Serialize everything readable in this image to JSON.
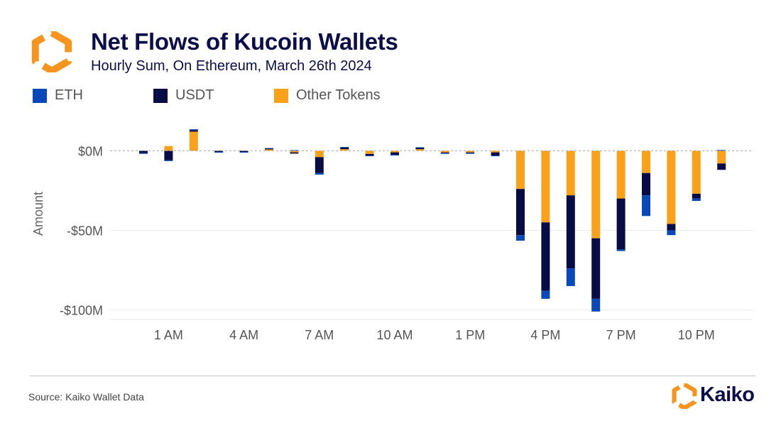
{
  "header": {
    "title": "Net Flows of Kucoin Wallets",
    "subtitle": "Hourly Sum, On Ethereum, March 26th 2024"
  },
  "legend": [
    {
      "label": "ETH",
      "color": "#0a47b8"
    },
    {
      "label": "USDT",
      "color": "#080c45"
    },
    {
      "label": "Other Tokens",
      "color": "#f9a11b"
    }
  ],
  "footer": {
    "source": "Source: Kaiko Wallet Data",
    "brand": "Kaiko",
    "logo_icon": "kaiko-hexagon-logo"
  },
  "chart_data": {
    "type": "bar",
    "stacked": true,
    "ylabel": "Amount",
    "xlabel": "",
    "ylim": [
      -106,
      18
    ],
    "yticks": [
      0,
      -50,
      -100
    ],
    "ytick_labels": [
      "$0M",
      "-$50M",
      "-$100M"
    ],
    "xtick_indices": [
      1,
      4,
      7,
      10,
      13,
      16,
      19,
      22
    ],
    "xtick_labels": [
      "1 AM",
      "4 AM",
      "7 AM",
      "10 AM",
      "1 PM",
      "4 PM",
      "7 PM",
      "10 PM"
    ],
    "grid": "horizontal",
    "legend_position": "top-left",
    "unit": "$M",
    "categories": [
      "12 AM",
      "1 AM",
      "2 AM",
      "3 AM",
      "4 AM",
      "5 AM",
      "6 AM",
      "7 AM",
      "8 AM",
      "9 AM",
      "10 AM",
      "11 AM",
      "12 PM",
      "1 PM",
      "2 PM",
      "3 PM",
      "4 PM",
      "5 PM",
      "6 PM",
      "7 PM",
      "8 PM",
      "9 PM",
      "10 PM",
      "11 PM"
    ],
    "series": [
      {
        "name": "Other Tokens",
        "color": "#f9a11b",
        "values": [
          0,
          3,
          12,
          0,
          0,
          1,
          -1,
          -4,
          1,
          -2,
          -1,
          1,
          -1,
          -1,
          -1,
          -24,
          -45,
          -28,
          -55,
          -30,
          -14,
          -46,
          -27,
          -8
        ]
      },
      {
        "name": "USDT",
        "color": "#080c45",
        "values": [
          -1.5,
          -6,
          1,
          -0.8,
          -0.8,
          0.3,
          -0.8,
          -10,
          1,
          -1,
          -1.5,
          1,
          -0.5,
          -0.5,
          -2,
          -29,
          -43,
          -46,
          -38,
          -32,
          -14,
          -4,
          -3,
          -4
        ]
      },
      {
        "name": "ETH",
        "color": "#0a47b8",
        "values": [
          -0.3,
          -0.5,
          0.5,
          -0.3,
          -0.3,
          0.4,
          0.4,
          -1,
          0.4,
          -0.3,
          -0.3,
          0.2,
          -0.3,
          -0.3,
          -0.3,
          -3.5,
          -5,
          -11,
          -8,
          -1,
          -13,
          -3,
          -1.5,
          0.5
        ]
      }
    ]
  }
}
